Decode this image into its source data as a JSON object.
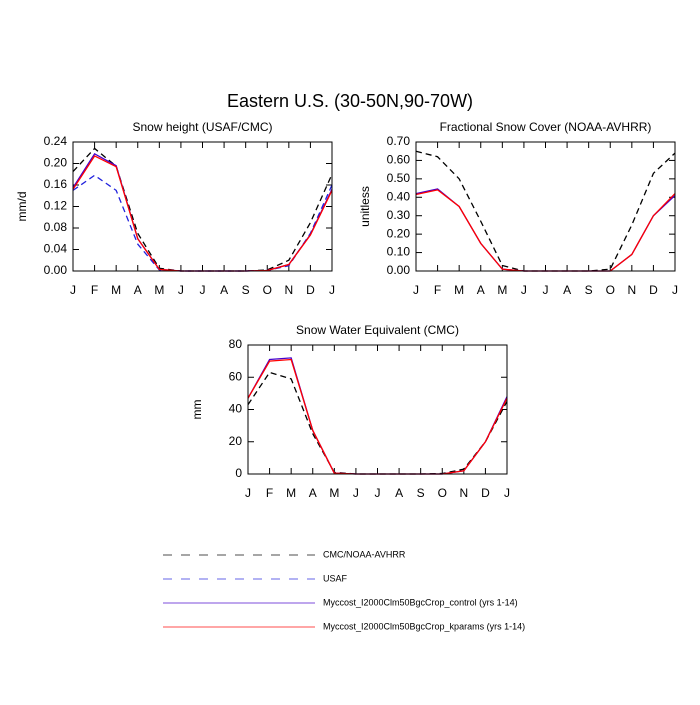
{
  "title": "Eastern U.S. (30-50N,90-70W)",
  "chart_data": [
    {
      "type": "line",
      "title": "Snow height (USAF/CMC)",
      "ylabel": "mm/d",
      "categories": [
        "J",
        "F",
        "M",
        "A",
        "M",
        "J",
        "J",
        "A",
        "S",
        "O",
        "N",
        "D",
        "J"
      ],
      "ylim": [
        0,
        0.24
      ],
      "yticks": [
        {
          "value": 0,
          "label": "0.00"
        },
        {
          "value": 0.04,
          "label": "0.04"
        },
        {
          "value": 0.08,
          "label": "0.08"
        },
        {
          "value": 0.12,
          "label": "0.12"
        },
        {
          "value": 0.16,
          "label": "0.16"
        },
        {
          "value": 0.2,
          "label": "0.20"
        },
        {
          "value": 0.24,
          "label": "0.24"
        }
      ],
      "series": [
        {
          "name": "CMC/NOAA-AVHRR",
          "color": "#000000",
          "dashed": true,
          "values": [
            0.185,
            0.228,
            0.195,
            0.07,
            0.005,
            0,
            0,
            0,
            0,
            0.002,
            0.02,
            0.09,
            0.18
          ]
        },
        {
          "name": "USAF",
          "color": "#2222dd",
          "dashed": true,
          "values": [
            0.15,
            0.178,
            0.15,
            0.05,
            0.002,
            0,
            0,
            0,
            0,
            0.001,
            0.01,
            0.07,
            0.16
          ]
        },
        {
          "name": "Myccost_I2000Clm50BgcCrop_control (yrs 1-14)",
          "color": "#4400cc",
          "dashed": false,
          "values": [
            0.155,
            0.218,
            0.196,
            0.06,
            0.003,
            0,
            0,
            0,
            0,
            0.001,
            0.012,
            0.068,
            0.152
          ]
        },
        {
          "name": "Myccost_I2000Clm50BgcCrop_kparams (yrs 1-14)",
          "color": "#ff0000",
          "dashed": false,
          "values": [
            0.152,
            0.214,
            0.194,
            0.06,
            0.003,
            0,
            0,
            0,
            0,
            0.001,
            0.012,
            0.067,
            0.15
          ]
        }
      ]
    },
    {
      "type": "line",
      "title": "Fractional Snow Cover (NOAA-AVHRR)",
      "ylabel": "unitless",
      "categories": [
        "J",
        "F",
        "M",
        "A",
        "M",
        "J",
        "J",
        "A",
        "S",
        "O",
        "N",
        "D",
        "J"
      ],
      "ylim": [
        0,
        0.7
      ],
      "yticks": [
        {
          "value": 0,
          "label": "0.00"
        },
        {
          "value": 0.1,
          "label": "0.10"
        },
        {
          "value": 0.2,
          "label": "0.20"
        },
        {
          "value": 0.3,
          "label": "0.30"
        },
        {
          "value": 0.4,
          "label": "0.40"
        },
        {
          "value": 0.5,
          "label": "0.50"
        },
        {
          "value": 0.6,
          "label": "0.60"
        },
        {
          "value": 0.7,
          "label": "0.70"
        }
      ],
      "series": [
        {
          "name": "CMC/NOAA-AVHRR",
          "color": "#000000",
          "dashed": true,
          "values": [
            0.65,
            0.62,
            0.5,
            0.27,
            0.03,
            0,
            0,
            0,
            0,
            0.01,
            0.25,
            0.53,
            0.64
          ]
        },
        {
          "name": "Myccost_I2000Clm50BgcCrop_control (yrs 1-14)",
          "color": "#4400cc",
          "dashed": false,
          "values": [
            0.42,
            0.445,
            0.35,
            0.15,
            0.01,
            0,
            0,
            0,
            0,
            0,
            0.09,
            0.3,
            0.41
          ]
        },
        {
          "name": "Myccost_I2000Clm50BgcCrop_kparams (yrs 1-14)",
          "color": "#ff0000",
          "dashed": false,
          "values": [
            0.415,
            0.44,
            0.35,
            0.15,
            0.01,
            0,
            0,
            0,
            0,
            0,
            0.09,
            0.3,
            0.42
          ]
        }
      ]
    },
    {
      "type": "line",
      "title": "Snow Water Equivalent (CMC)",
      "ylabel": "mm",
      "categories": [
        "J",
        "F",
        "M",
        "A",
        "M",
        "J",
        "J",
        "A",
        "S",
        "O",
        "N",
        "D",
        "J"
      ],
      "ylim": [
        0,
        80
      ],
      "yticks": [
        0,
        20,
        40,
        60,
        80
      ],
      "series": [
        {
          "name": "CMC/NOAA-AVHRR",
          "color": "#000000",
          "dashed": true,
          "values": [
            43,
            63,
            59,
            25,
            1,
            0,
            0,
            0,
            0,
            0.3,
            3,
            20,
            45
          ]
        },
        {
          "name": "Myccost_I2000Clm50BgcCrop_control (yrs 1-14)",
          "color": "#4400cc",
          "dashed": false,
          "values": [
            47,
            71,
            72,
            27,
            0.5,
            0,
            0,
            0,
            0,
            0,
            2,
            20,
            48
          ]
        },
        {
          "name": "Myccost_I2000Clm50BgcCrop_kparams (yrs 1-14)",
          "color": "#ff0000",
          "dashed": false,
          "values": [
            47,
            70,
            71,
            27,
            0.5,
            0,
            0,
            0,
            0,
            0,
            2,
            20,
            47
          ]
        }
      ]
    }
  ]
}
